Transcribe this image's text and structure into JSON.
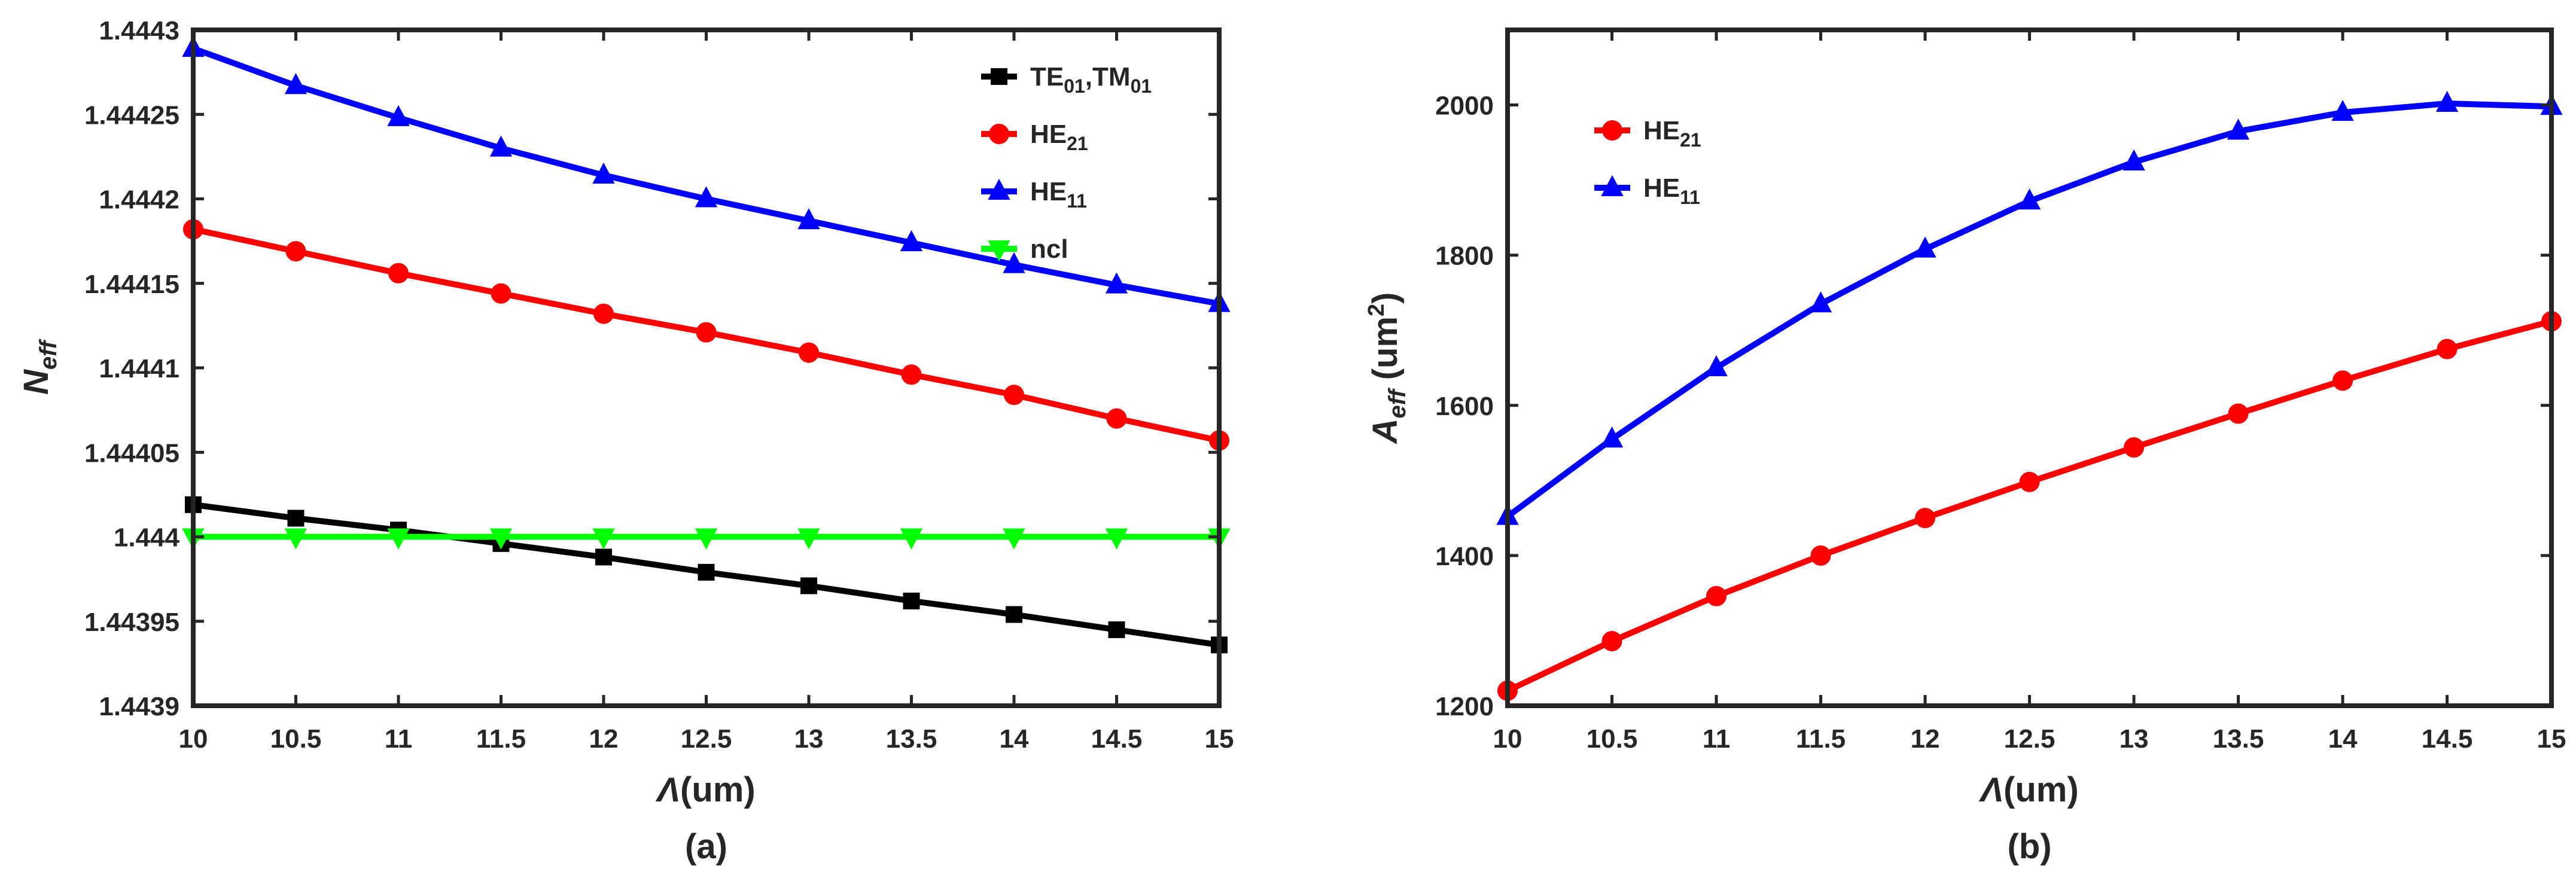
{
  "chart_data": [
    {
      "type": "line",
      "panel_label": "(a)",
      "xlabel": {
        "symbol": "Λ",
        "text": "(um)"
      },
      "ylabel": {
        "main": "N",
        "sub": "eff"
      },
      "x": [
        10,
        10.5,
        11,
        11.5,
        12,
        12.5,
        13,
        13.5,
        14,
        14.5,
        15
      ],
      "xlim": [
        10,
        15
      ],
      "ylim": [
        1.4439,
        1.4443
      ],
      "xticks": [
        "10",
        "10.5",
        "11",
        "11.5",
        "12",
        "12.5",
        "13",
        "13.5",
        "14",
        "14.5",
        "15"
      ],
      "yticks": [
        "1.4439",
        "1.44395",
        "1.444",
        "1.44405",
        "1.4441",
        "1.44415",
        "1.4442",
        "1.44425",
        "1.4443"
      ],
      "ytick_values": [
        1.4439,
        1.44395,
        1.444,
        1.44405,
        1.4441,
        1.44415,
        1.4442,
        1.44425,
        1.4443
      ],
      "grid": false,
      "legend_position": "top-right",
      "series": [
        {
          "name": "TE01,TM01",
          "label_parts": [
            [
              "TE",
              "01"
            ],
            [
              ",TM",
              "01"
            ]
          ],
          "color": "#000000",
          "marker": "square",
          "values": [
            1.444019,
            1.444011,
            1.444004,
            1.443996,
            1.443988,
            1.443979,
            1.443971,
            1.443962,
            1.443954,
            1.443945,
            1.443936
          ]
        },
        {
          "name": "HE21",
          "label_parts": [
            [
              "HE",
              "21"
            ]
          ],
          "color": "#ff0000",
          "marker": "circle",
          "values": [
            1.444182,
            1.444169,
            1.444156,
            1.444144,
            1.444132,
            1.444121,
            1.444109,
            1.444096,
            1.444084,
            1.44407,
            1.444057
          ]
        },
        {
          "name": "HE11",
          "label_parts": [
            [
              "HE",
              "11"
            ]
          ],
          "color": "#0000ff",
          "marker": "triangle-up",
          "values": [
            1.444289,
            1.444267,
            1.444248,
            1.44423,
            1.444214,
            1.4442,
            1.444187,
            1.444174,
            1.444161,
            1.444149,
            1.444138
          ]
        },
        {
          "name": "ncl",
          "label_parts": [
            [
              "ncl",
              ""
            ]
          ],
          "color": "#00ff00",
          "marker": "triangle-down",
          "values": [
            1.444,
            1.444,
            1.444,
            1.444,
            1.444,
            1.444,
            1.444,
            1.444,
            1.444,
            1.444,
            1.444
          ]
        }
      ]
    },
    {
      "type": "line",
      "panel_label": "(b)",
      "xlabel": {
        "symbol": "Λ",
        "text": "(um)"
      },
      "ylabel": {
        "main": "A",
        "sub": "eff",
        "unit": "(um",
        "unit_sup": "2",
        "unit_close": ")"
      },
      "x": [
        10,
        10.5,
        11,
        11.5,
        12,
        12.5,
        13,
        13.5,
        14,
        14.5,
        15
      ],
      "xlim": [
        10,
        15
      ],
      "ylim": [
        1200,
        2100
      ],
      "xticks": [
        "10",
        "10.5",
        "11",
        "11.5",
        "12",
        "12.5",
        "13",
        "13.5",
        "14",
        "14.5",
        "15"
      ],
      "yticks": [
        "1200",
        "1400",
        "1600",
        "1800",
        "2000"
      ],
      "ytick_values": [
        1200,
        1400,
        1600,
        1800,
        2000
      ],
      "grid": false,
      "legend_position": "top-left",
      "series": [
        {
          "name": "HE21",
          "label_parts": [
            [
              "HE",
              "21"
            ]
          ],
          "color": "#ff0000",
          "marker": "circle",
          "values": [
            1220,
            1286,
            1346,
            1400,
            1450,
            1498,
            1544,
            1589,
            1633,
            1675,
            1712
          ]
        },
        {
          "name": "HE11",
          "label_parts": [
            [
              "HE",
              "11"
            ]
          ],
          "color": "#0000ff",
          "marker": "triangle-up",
          "values": [
            1452,
            1555,
            1650,
            1735,
            1808,
            1872,
            1924,
            1965,
            1990,
            2002,
            1998
          ]
        }
      ]
    }
  ]
}
